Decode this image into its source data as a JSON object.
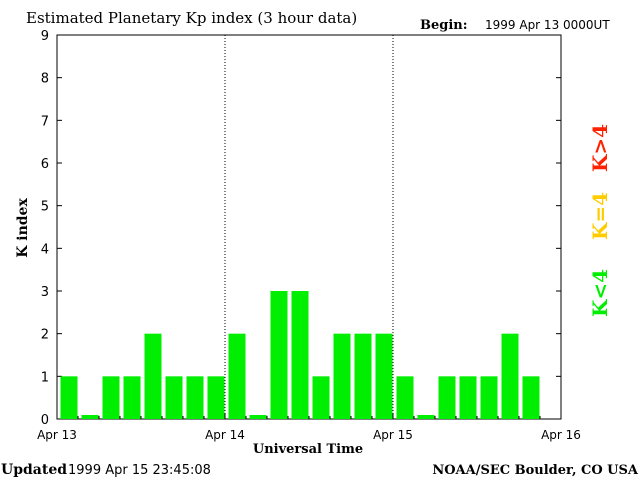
{
  "header": {
    "title": "Estimated Planetary Kp index (3 hour data)",
    "begin_label": "Begin:",
    "begin_value": "1999 Apr 13 0000UT"
  },
  "footer": {
    "updated_label": "Updated",
    "updated_value": "1999 Apr 15 23:45:08",
    "source": "NOAA/SEC Boulder, CO USA"
  },
  "legend": [
    {
      "label": "K<4",
      "color": "#00ee00"
    },
    {
      "label": "K=4",
      "color": "#ffcc00"
    },
    {
      "label": "K>4",
      "color": "#ff2200"
    }
  ],
  "chart_data": {
    "type": "bar",
    "title": "Estimated Planetary Kp index (3 hour data)",
    "xlabel": "Universal Time",
    "ylabel": "K index",
    "ylim": [
      0,
      9
    ],
    "yticks": [
      "0",
      "1",
      "2",
      "3",
      "4",
      "5",
      "6",
      "7",
      "8",
      "9"
    ],
    "xticks": [
      "Apr 13",
      "Apr 14",
      "Apr 15",
      "Apr 16"
    ],
    "bar_color": "#00ee00",
    "values": [
      1,
      0,
      1,
      1,
      2,
      1,
      1,
      1,
      2,
      0,
      3,
      3,
      1,
      2,
      2,
      2,
      1,
      0,
      1,
      1,
      1,
      2,
      1
    ],
    "day_separators": [
      "Apr 14",
      "Apr 15"
    ]
  }
}
